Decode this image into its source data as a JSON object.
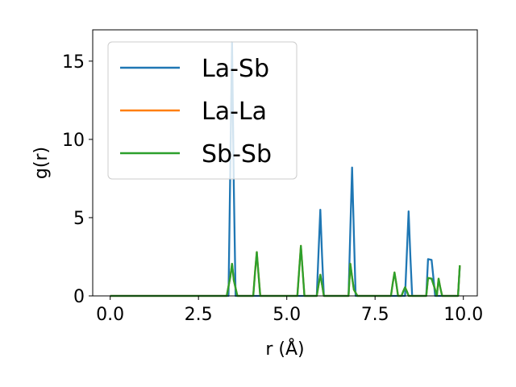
{
  "chart_data": {
    "type": "line",
    "xlabel": "r (Å)",
    "ylabel": "g(r)",
    "xlim": [
      -0.495,
      10.395
    ],
    "ylim": [
      0,
      17
    ],
    "xticks": [
      0.0,
      2.5,
      5.0,
      7.5,
      10.0
    ],
    "xtick_labels": [
      "0.0",
      "2.5",
      "5.0",
      "7.5",
      "10.0"
    ],
    "yticks": [
      0,
      5,
      10,
      15
    ],
    "ytick_labels": [
      "0",
      "5",
      "10",
      "15"
    ],
    "grid": false,
    "legend_position": "upper-left",
    "series": [
      {
        "name": "La-Sb",
        "color": "#1f77b4",
        "points": [
          [
            0.0,
            0
          ],
          [
            3.3,
            0
          ],
          [
            3.35,
            0
          ],
          [
            3.4,
            8.0
          ],
          [
            3.45,
            16.2
          ],
          [
            3.5,
            7.0
          ],
          [
            3.55,
            0
          ],
          [
            5.85,
            0
          ],
          [
            5.9,
            2.8
          ],
          [
            5.95,
            5.5
          ],
          [
            6.0,
            2.5
          ],
          [
            6.05,
            0
          ],
          [
            6.75,
            0
          ],
          [
            6.8,
            4.2
          ],
          [
            6.85,
            8.2
          ],
          [
            6.9,
            4.0
          ],
          [
            6.95,
            0
          ],
          [
            8.35,
            0
          ],
          [
            8.4,
            2.7
          ],
          [
            8.45,
            5.4
          ],
          [
            8.5,
            2.5
          ],
          [
            8.55,
            0
          ],
          [
            8.95,
            0
          ],
          [
            9.0,
            2.35
          ],
          [
            9.1,
            2.3
          ],
          [
            9.15,
            1.2
          ],
          [
            9.2,
            0
          ],
          [
            9.85,
            0
          ],
          [
            9.9,
            1.9
          ]
        ]
      },
      {
        "name": "La-La",
        "color": "#ff7f0e",
        "points": [
          [
            0.0,
            0
          ],
          [
            3.3,
            0
          ],
          [
            3.4,
            1.2
          ],
          [
            3.45,
            2.05
          ],
          [
            3.5,
            1.0
          ],
          [
            3.6,
            0
          ],
          [
            4.05,
            0
          ],
          [
            4.1,
            1.5
          ],
          [
            4.15,
            2.8
          ],
          [
            4.2,
            1.4
          ],
          [
            4.25,
            0
          ],
          [
            5.3,
            0
          ],
          [
            5.35,
            1.6
          ],
          [
            5.4,
            3.2
          ],
          [
            5.45,
            1.6
          ],
          [
            5.5,
            0
          ],
          [
            5.85,
            0
          ],
          [
            5.9,
            0.7
          ],
          [
            5.95,
            1.35
          ],
          [
            6.0,
            0.7
          ],
          [
            6.05,
            0
          ],
          [
            6.75,
            0
          ],
          [
            6.8,
            2.05
          ],
          [
            6.85,
            1.2
          ],
          [
            6.9,
            0.4
          ],
          [
            7.0,
            0
          ],
          [
            7.95,
            0
          ],
          [
            8.0,
            0.8
          ],
          [
            8.05,
            1.5
          ],
          [
            8.1,
            0.8
          ],
          [
            8.15,
            0
          ],
          [
            8.25,
            0
          ],
          [
            8.3,
            0.3
          ],
          [
            8.35,
            0.55
          ],
          [
            8.4,
            0.3
          ],
          [
            8.45,
            0
          ],
          [
            8.95,
            0
          ],
          [
            9.0,
            1.15
          ],
          [
            9.1,
            1.1
          ],
          [
            9.2,
            0.4
          ],
          [
            9.25,
            0
          ],
          [
            9.3,
            1.1
          ],
          [
            9.35,
            0.5
          ],
          [
            9.4,
            0
          ],
          [
            9.85,
            0
          ],
          [
            9.9,
            1.95
          ]
        ]
      },
      {
        "name": "Sb-Sb",
        "color": "#2ca02c",
        "points": [
          [
            0.0,
            0
          ],
          [
            3.3,
            0
          ],
          [
            3.4,
            1.2
          ],
          [
            3.45,
            2.05
          ],
          [
            3.5,
            1.0
          ],
          [
            3.6,
            0
          ],
          [
            4.05,
            0
          ],
          [
            4.1,
            1.5
          ],
          [
            4.15,
            2.8
          ],
          [
            4.2,
            1.4
          ],
          [
            4.25,
            0
          ],
          [
            5.3,
            0
          ],
          [
            5.35,
            1.6
          ],
          [
            5.4,
            3.2
          ],
          [
            5.45,
            1.6
          ],
          [
            5.5,
            0
          ],
          [
            5.85,
            0
          ],
          [
            5.9,
            0.7
          ],
          [
            5.95,
            1.35
          ],
          [
            6.0,
            0.7
          ],
          [
            6.05,
            0
          ],
          [
            6.75,
            0
          ],
          [
            6.8,
            2.05
          ],
          [
            6.85,
            1.2
          ],
          [
            6.9,
            0.4
          ],
          [
            7.0,
            0
          ],
          [
            7.95,
            0
          ],
          [
            8.0,
            0.8
          ],
          [
            8.05,
            1.5
          ],
          [
            8.1,
            0.8
          ],
          [
            8.15,
            0
          ],
          [
            8.25,
            0
          ],
          [
            8.3,
            0.3
          ],
          [
            8.35,
            0.55
          ],
          [
            8.4,
            0.3
          ],
          [
            8.45,
            0
          ],
          [
            8.95,
            0
          ],
          [
            9.0,
            1.15
          ],
          [
            9.1,
            1.1
          ],
          [
            9.2,
            0.4
          ],
          [
            9.25,
            0
          ],
          [
            9.3,
            1.1
          ],
          [
            9.35,
            0.5
          ],
          [
            9.4,
            0
          ],
          [
            9.85,
            0
          ],
          [
            9.9,
            1.95
          ]
        ]
      }
    ]
  }
}
